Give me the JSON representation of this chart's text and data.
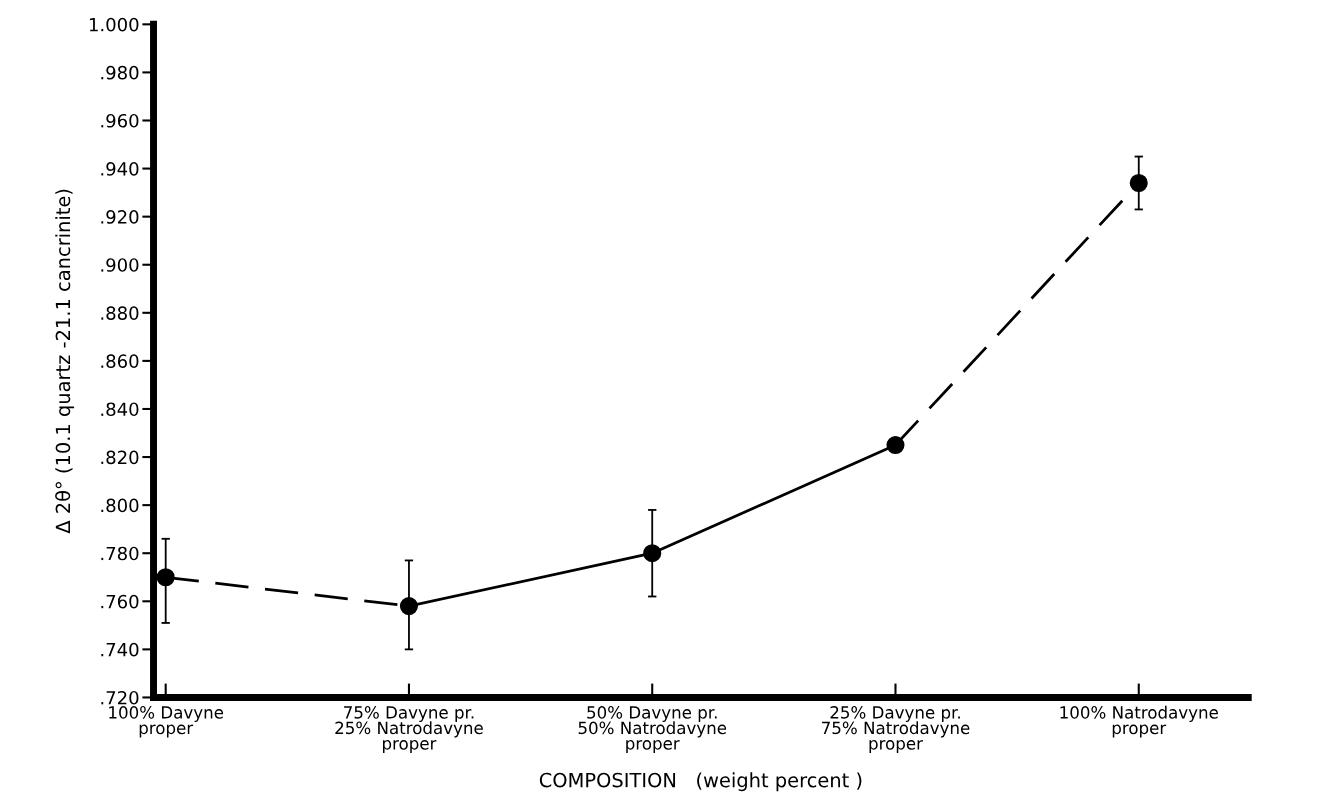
{
  "chart_data": {
    "type": "scatter",
    "xlabel": "COMPOSITION   (weight percent )",
    "ylabel": "Δ 2θ° (10.1 quartz -21.1 cancrinite)",
    "categories": [
      "100% Davyne\nproper",
      "75% Davyne pr.\n25% Natrodavyne\nproper",
      "50% Davyne pr.\n50% Natrodavyne\nproper",
      "25% Davyne pr.\n75% Natrodavyne\nproper",
      "100% Natrodavyne\nproper"
    ],
    "ylim": [
      0.72,
      1.0
    ],
    "yticks": [
      {
        "value": 0.72,
        "label": ".720"
      },
      {
        "value": 0.74,
        "label": ".740"
      },
      {
        "value": 0.76,
        "label": ".760"
      },
      {
        "value": 0.78,
        "label": ".780"
      },
      {
        "value": 0.8,
        "label": ".800"
      },
      {
        "value": 0.82,
        "label": ".820"
      },
      {
        "value": 0.84,
        "label": ".840"
      },
      {
        "value": 0.86,
        "label": ".860"
      },
      {
        "value": 0.88,
        "label": ".880"
      },
      {
        "value": 0.9,
        "label": ".900"
      },
      {
        "value": 0.92,
        "label": ".920"
      },
      {
        "value": 0.94,
        "label": ".940"
      },
      {
        "value": 0.96,
        "label": ".960"
      },
      {
        "value": 0.98,
        "label": ".980"
      },
      {
        "value": 1.0,
        "label": "1.000"
      }
    ],
    "grid": false,
    "legend": false,
    "series": [
      {
        "type": "line",
        "color": "#000000",
        "line_style": "dashed",
        "marker": "none",
        "values": [
          0.77,
          0.758,
          null,
          null,
          null
        ]
      },
      {
        "type": "line",
        "color": "#000000",
        "line_style": "solid",
        "marker": "none",
        "values": [
          null,
          0.758,
          0.78,
          0.825,
          null
        ]
      },
      {
        "type": "line",
        "color": "#000000",
        "line_style": "dashed",
        "marker": "none",
        "values": [
          null,
          null,
          null,
          0.825,
          0.934
        ]
      },
      {
        "color": "#000000",
        "marker": "circle",
        "values": [
          0.77,
          0.758,
          0.78,
          0.825,
          0.934
        ],
        "errors": [
          [
            0.751,
            0.786
          ],
          [
            0.74,
            0.777
          ],
          [
            0.762,
            0.798
          ],
          null,
          [
            0.923,
            0.945
          ]
        ]
      }
    ]
  }
}
